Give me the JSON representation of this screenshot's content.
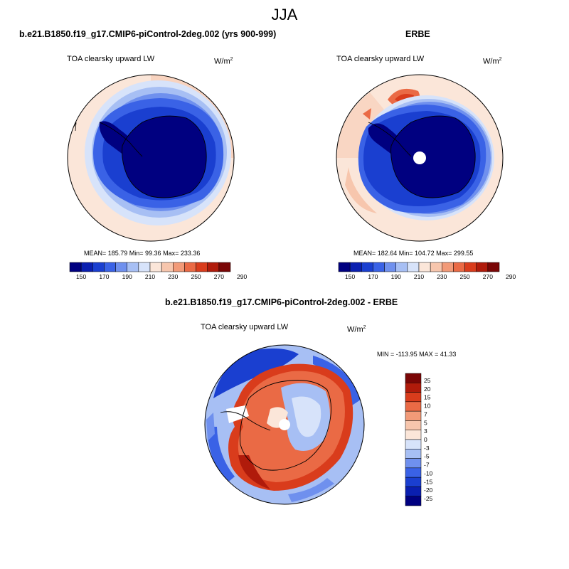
{
  "title": "JJA",
  "colors": {
    "abs_levels": [
      "#000080",
      "#0a1fb0",
      "#1a3fd0",
      "#3a62e6",
      "#6f90ee",
      "#a7bff4",
      "#d7e3fa",
      "#fbe6d9",
      "#f7c6ad",
      "#f29a78",
      "#ea6a45",
      "#d93c1c",
      "#b01b0b",
      "#7a0606"
    ],
    "diff_levels": [
      "#7a0606",
      "#b01b0b",
      "#d93c1c",
      "#ea6a45",
      "#f29a78",
      "#f7c6ad",
      "#fbe6d9",
      "#d7e3fa",
      "#a7bff4",
      "#6f90ee",
      "#3a62e6",
      "#1a3fd0",
      "#0a1fb0",
      "#000080"
    ],
    "coast": "#000000",
    "frame": "#000000"
  },
  "panels": {
    "model": {
      "title": "b.e21.B1850.f19_g17.CMIP6-piControl-2deg.002 (yrs 900-999)",
      "variable": "TOA clearsky upward LW",
      "units": "W/m",
      "units_sup": "2",
      "stats": "MEAN= 185.79  Min=  99.36  Max= 233.36"
    },
    "obs": {
      "title": "ERBE",
      "variable": "TOA clearsky upward LW",
      "units": "W/m",
      "units_sup": "2",
      "stats": "MEAN= 182.64  Min= 104.72  Max= 299.55"
    },
    "diff": {
      "title": "b.e21.B1850.f19_g17.CMIP6-piControl-2deg.002 - ERBE",
      "variable": "TOA clearsky upward LW",
      "units": "W/m",
      "units_sup": "2",
      "stats": "MIN = -113.95 MAX =  41.33"
    }
  },
  "chart_data": [
    {
      "type": "heatmap",
      "projection": "south-polar-stereographic",
      "title": "b.e21.B1850.f19_g17.CMIP6-piControl-2deg.002 (yrs 900-999)",
      "variable": "TOA clearsky upward LW",
      "units": "W/m2",
      "mean": 185.79,
      "min": 99.36,
      "max": 233.36,
      "colorbar_ticks": [
        150,
        170,
        190,
        210,
        230,
        250,
        270,
        290
      ],
      "colorbar_levels": 14
    },
    {
      "type": "heatmap",
      "projection": "south-polar-stereographic",
      "title": "ERBE",
      "variable": "TOA clearsky upward LW",
      "units": "W/m2",
      "mean": 182.64,
      "min": 104.72,
      "max": 299.55,
      "colorbar_ticks": [
        150,
        170,
        190,
        210,
        230,
        250,
        270,
        290
      ],
      "colorbar_levels": 14
    },
    {
      "type": "heatmap",
      "projection": "south-polar-stereographic",
      "title": "b.e21.B1850.f19_g17.CMIP6-piControl-2deg.002 - ERBE",
      "variable": "TOA clearsky upward LW",
      "units": "W/m2",
      "min": -113.95,
      "max": 41.33,
      "colorbar_ticks": [
        "25",
        "20",
        "15",
        "10",
        "7",
        "5",
        "3",
        "0",
        "-3",
        "-5",
        "-7",
        "-10",
        "-15",
        "-20",
        "-25"
      ]
    }
  ]
}
